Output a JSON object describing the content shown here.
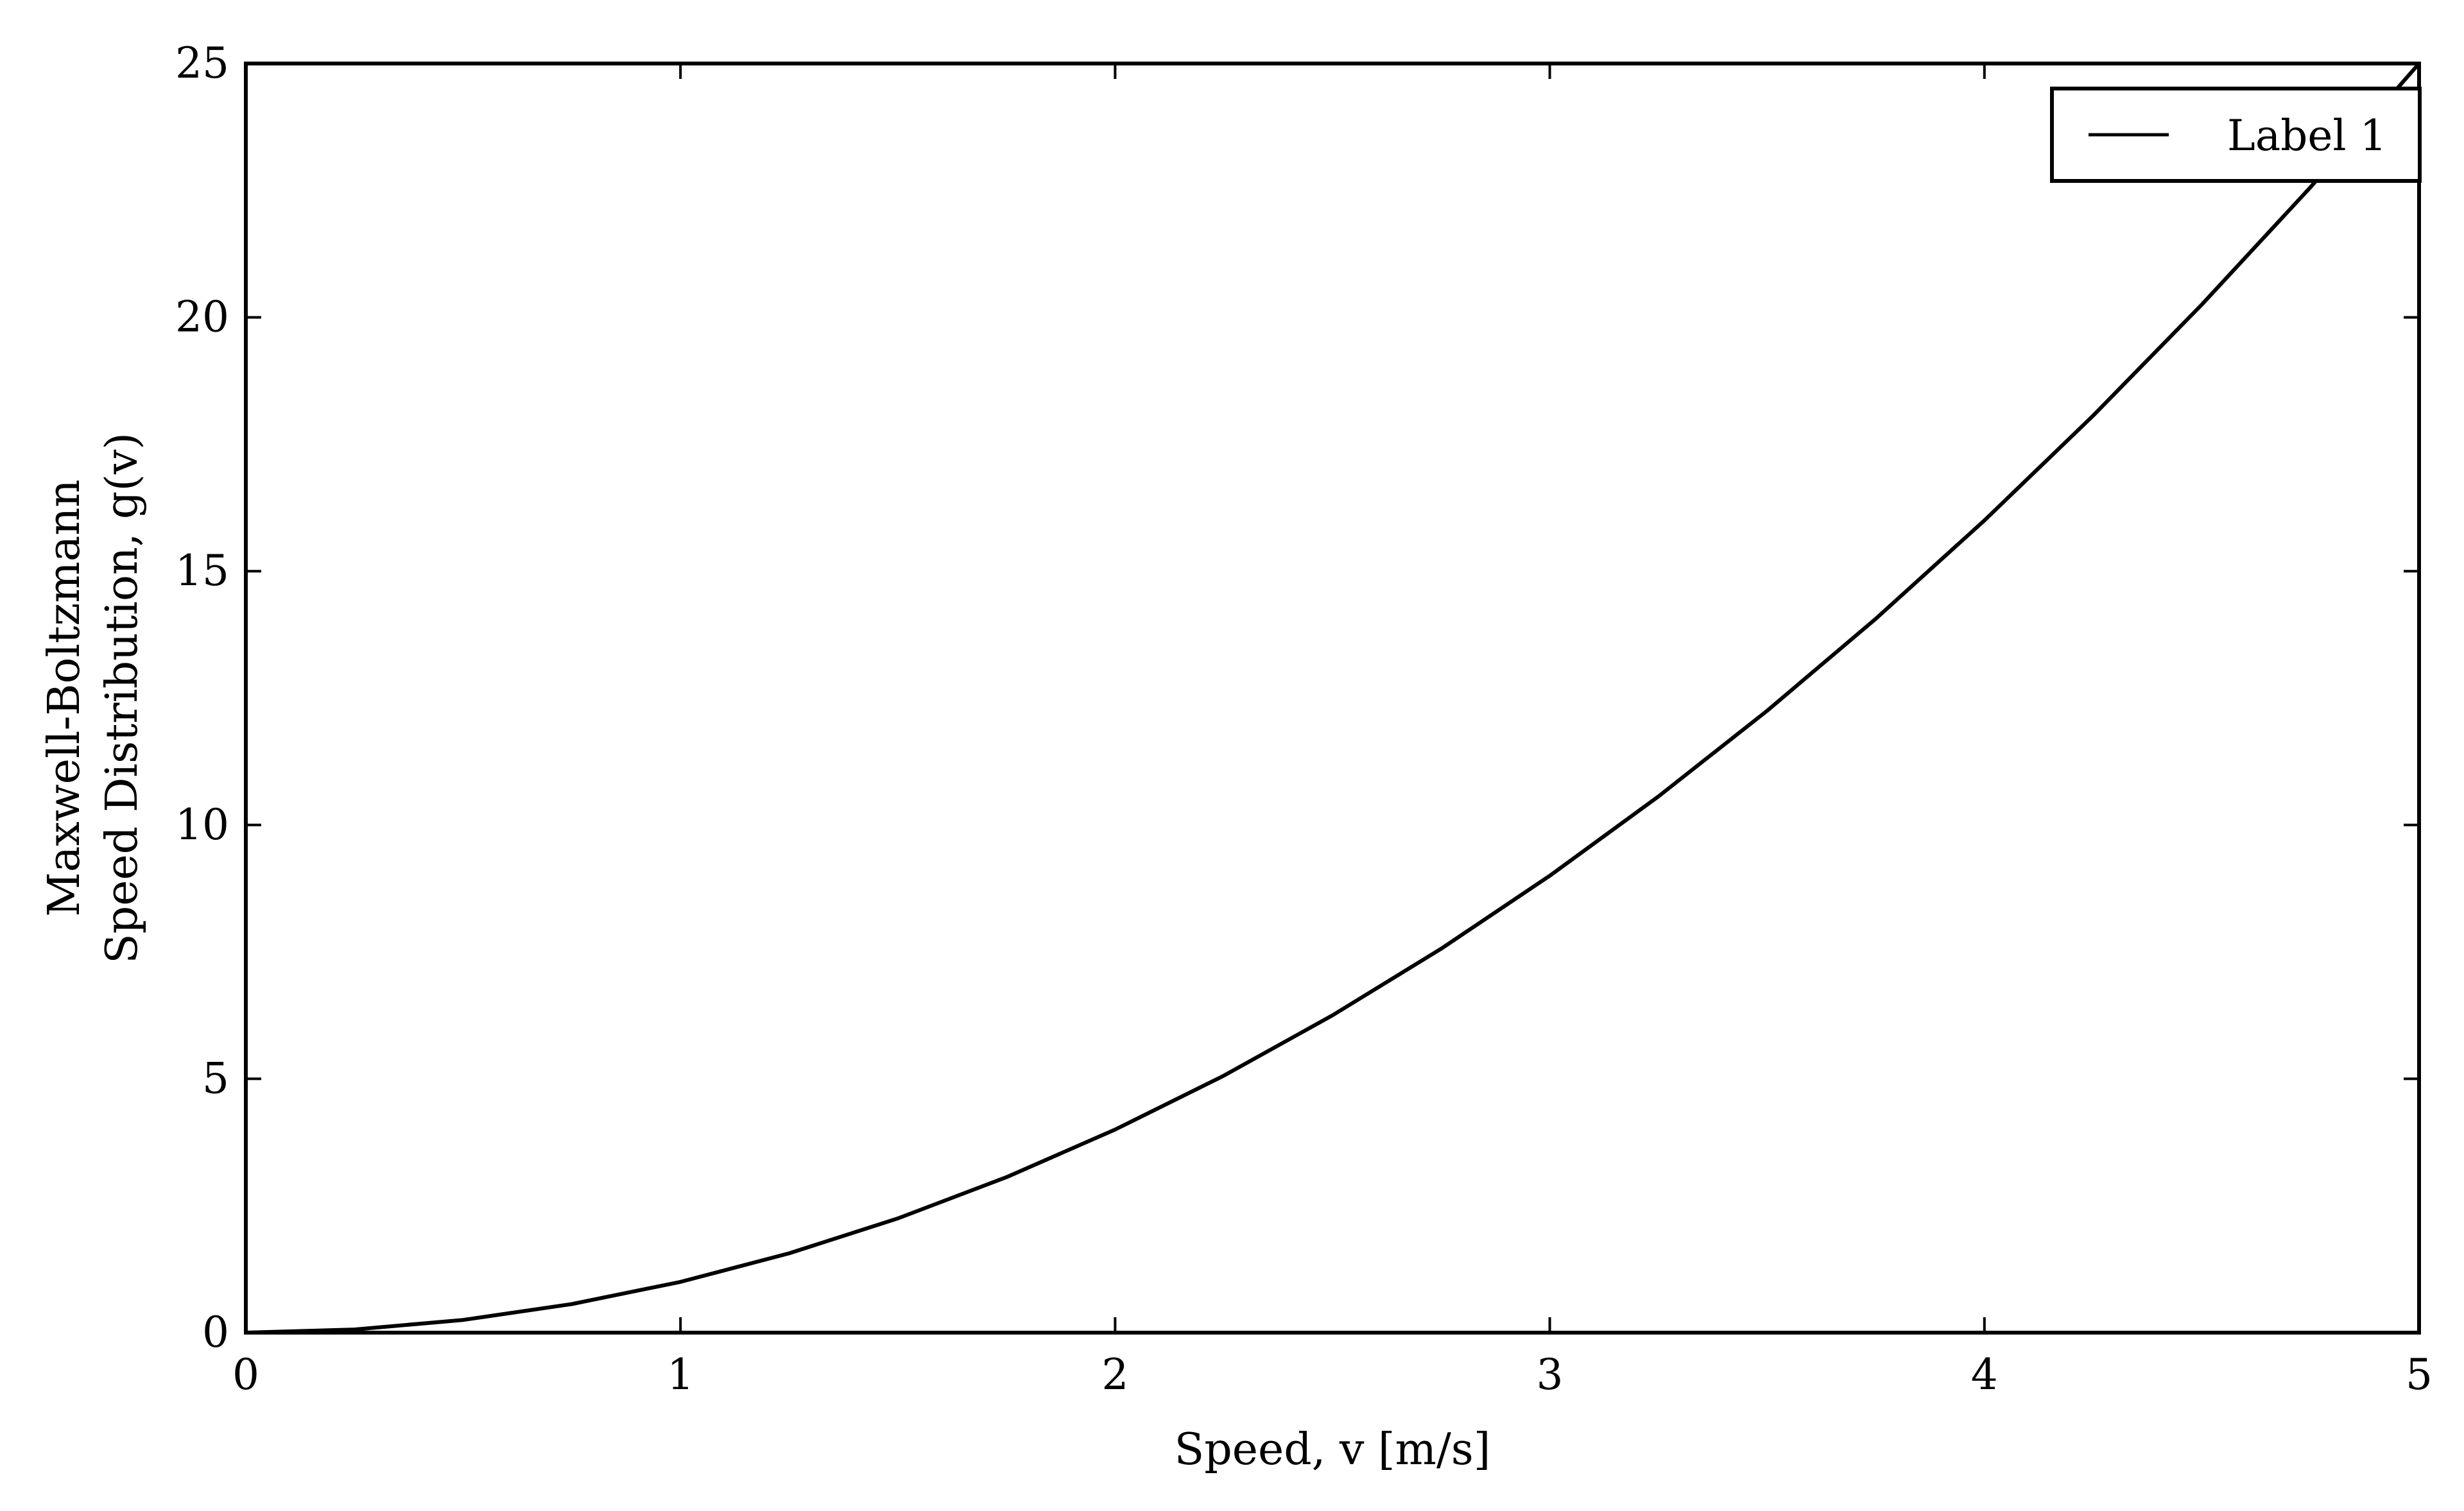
{
  "chart_data": {
    "type": "line",
    "title": "",
    "xlabel": "Speed, v [m/s]",
    "ylabel_lines": [
      "Maxwell-Boltzmann",
      "Speed Distribution, g(v)"
    ],
    "xlim": [
      0,
      5
    ],
    "ylim": [
      0,
      25
    ],
    "xticks": [
      {
        "value": 0,
        "label": "0"
      },
      {
        "value": 1,
        "label": "1"
      },
      {
        "value": 2,
        "label": "2"
      },
      {
        "value": 3,
        "label": "3"
      },
      {
        "value": 4,
        "label": "4"
      },
      {
        "value": 5,
        "label": "5"
      }
    ],
    "yticks": [
      {
        "value": 0,
        "label": "0"
      },
      {
        "value": 5,
        "label": "5"
      },
      {
        "value": 10,
        "label": "10"
      },
      {
        "value": 15,
        "label": "15"
      },
      {
        "value": 20,
        "label": "20"
      },
      {
        "value": 25,
        "label": "25"
      }
    ],
    "grid": false,
    "legend": {
      "position": "top-right",
      "entries": [
        "Label 1"
      ]
    },
    "series": [
      {
        "name": "Label 1",
        "color": "#000000",
        "x": [
          0,
          0.25,
          0.5,
          0.75,
          1.0,
          1.25,
          1.5,
          1.75,
          2.0,
          2.25,
          2.5,
          2.75,
          3.0,
          3.25,
          3.5,
          3.75,
          4.0,
          4.25,
          4.5,
          4.75,
          5.0
        ],
        "y": [
          0,
          0.0625,
          0.25,
          0.5625,
          1.0,
          1.5625,
          2.25,
          3.0625,
          4.0,
          5.0625,
          6.25,
          7.5625,
          9.0,
          10.5625,
          12.25,
          14.0625,
          16.0,
          18.0625,
          20.25,
          22.5625,
          25.0
        ]
      }
    ]
  }
}
